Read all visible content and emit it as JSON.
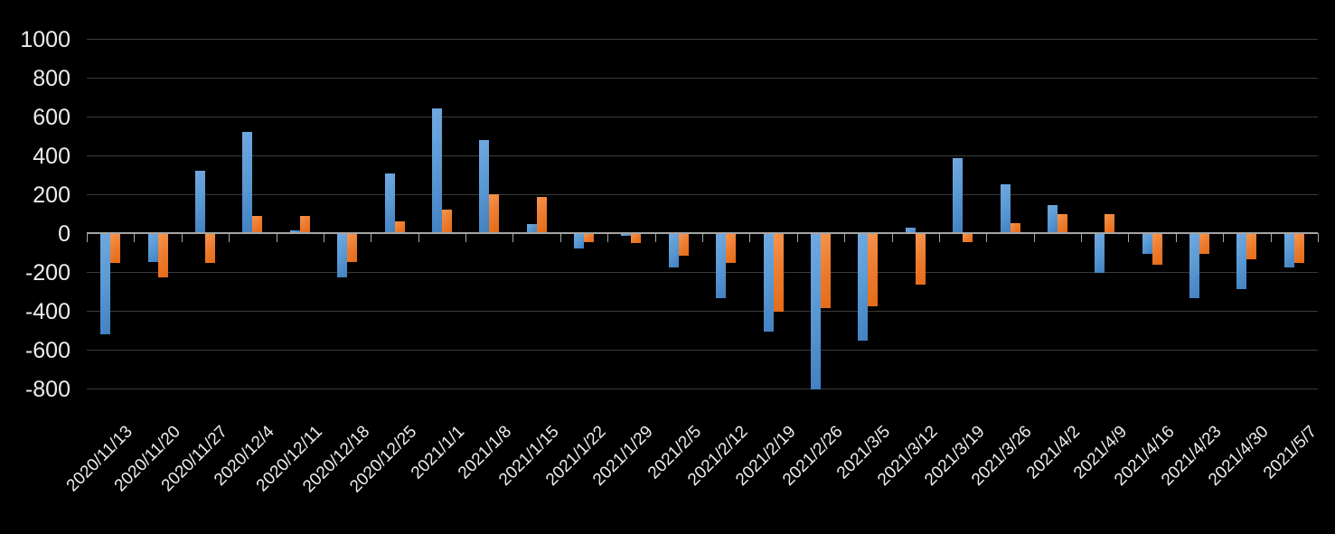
{
  "page": {
    "background": "#000000"
  },
  "chart_data": {
    "type": "bar",
    "title": "",
    "legend": "none",
    "grid": true,
    "categories": [
      "2020/11/13",
      "2020/11/20",
      "2020/11/27",
      "2020/12/4",
      "2020/12/11",
      "2020/12/18",
      "2020/12/25",
      "2021/1/1",
      "2021/1/8",
      "2021/1/15",
      "2021/1/22",
      "2021/1/29",
      "2021/2/5",
      "2021/2/12",
      "2021/2/19",
      "2021/2/26",
      "2021/3/5",
      "2021/3/12",
      "2021/3/19",
      "2021/3/26",
      "2021/4/2",
      "2021/4/9",
      "2021/4/16",
      "2021/4/23",
      "2021/4/30",
      "2021/5/7"
    ],
    "series": [
      {
        "key": "blue-series",
        "color": "#5b9bd5",
        "gradient": [
          "#71a8df",
          "#4280c0"
        ],
        "values": [
          -515,
          -145,
          320,
          520,
          15,
          -225,
          305,
          640,
          480,
          45,
          -75,
          -10,
          -170,
          -330,
          -500,
          -800,
          -550,
          30,
          385,
          250,
          145,
          -200,
          -100,
          -330,
          -285,
          -170
        ]
      },
      {
        "key": "orange-series",
        "color": "#ed7d31",
        "gradient": [
          "#f6954c",
          "#e56a14"
        ],
        "values": [
          -150,
          -225,
          -150,
          90,
          90,
          -145,
          60,
          120,
          200,
          185,
          -40,
          -45,
          -110,
          -150,
          -400,
          -380,
          -370,
          -260,
          -40,
          50,
          100,
          100,
          -160,
          -100,
          -130,
          -150
        ]
      }
    ],
    "y_axis": {
      "min": -800,
      "max": 1000,
      "tick_interval": 200,
      "tick_labels": [
        "1000",
        "800",
        "600",
        "400",
        "200",
        "0",
        "-200",
        "-400",
        "-600",
        "-800"
      ]
    },
    "x_axis": {
      "label_rotation_deg": 45
    },
    "colors": {
      "axis": "#a6a6a6",
      "gridline": "#3b3b3b",
      "label": "#ededed",
      "background": "#000000"
    }
  }
}
